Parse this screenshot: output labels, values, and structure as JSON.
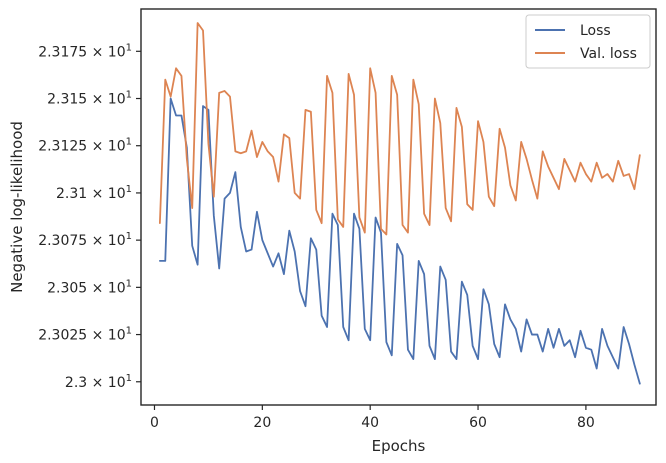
{
  "chart_data": {
    "type": "line",
    "title": "",
    "xlabel": "Epochs",
    "ylabel": "Negative log-likelihood",
    "xlim": [
      -2.5,
      93
    ],
    "ylim": [
      22.9877,
      23.1974
    ],
    "x_ticks": [
      {
        "value": 0,
        "label": "0"
      },
      {
        "value": 20,
        "label": "20"
      },
      {
        "value": 40,
        "label": "40"
      },
      {
        "value": 60,
        "label": "60"
      },
      {
        "value": 80,
        "label": "80"
      }
    ],
    "y_ticks": [
      {
        "value": 23.0,
        "mant": "2.3",
        "exp": "1"
      },
      {
        "value": 23.025,
        "mant": "2.3025",
        "exp": "1"
      },
      {
        "value": 23.05,
        "mant": "2.305",
        "exp": "1"
      },
      {
        "value": 23.075,
        "mant": "2.3075",
        "exp": "1"
      },
      {
        "value": 23.1,
        "mant": "2.31",
        "exp": "1"
      },
      {
        "value": 23.125,
        "mant": "2.3125",
        "exp": "1"
      },
      {
        "value": 23.15,
        "mant": "2.315",
        "exp": "1"
      },
      {
        "value": 23.175,
        "mant": "2.3175",
        "exp": "1"
      }
    ],
    "y_tick_times": "×",
    "y_tick_base": "10",
    "grid": false,
    "legend_position": "top-right",
    "x": [
      1,
      2,
      3,
      4,
      5,
      6,
      7,
      8,
      9,
      10,
      11,
      12,
      13,
      14,
      15,
      16,
      17,
      18,
      19,
      20,
      21,
      22,
      23,
      24,
      25,
      26,
      27,
      28,
      29,
      30,
      31,
      32,
      33,
      34,
      35,
      36,
      37,
      38,
      39,
      40,
      41,
      42,
      43,
      44,
      45,
      46,
      47,
      48,
      49,
      50,
      51,
      52,
      53,
      54,
      55,
      56,
      57,
      58,
      59,
      60,
      61,
      62,
      63,
      64,
      65,
      66,
      67,
      68,
      69,
      70,
      71,
      72,
      73,
      74,
      75,
      76,
      77,
      78,
      79,
      80,
      81,
      82,
      83,
      84,
      85,
      86,
      87,
      88,
      89,
      90
    ],
    "series": [
      {
        "name": "Loss",
        "color": "#4c72b0",
        "values": [
          23.064,
          23.064,
          23.15,
          23.141,
          23.141,
          23.124,
          23.072,
          23.062,
          23.146,
          23.144,
          23.088,
          23.06,
          23.097,
          23.1,
          23.111,
          23.082,
          23.069,
          23.07,
          23.09,
          23.075,
          23.068,
          23.061,
          23.068,
          23.057,
          23.08,
          23.069,
          23.048,
          23.04,
          23.076,
          23.07,
          23.035,
          23.029,
          23.089,
          23.083,
          23.029,
          23.022,
          23.089,
          23.081,
          23.028,
          23.022,
          23.087,
          23.079,
          23.021,
          23.014,
          23.073,
          23.067,
          23.017,
          23.012,
          23.064,
          23.057,
          23.019,
          23.012,
          23.061,
          23.054,
          23.016,
          23.012,
          23.053,
          23.046,
          23.019,
          23.012,
          23.049,
          23.041,
          23.02,
          23.013,
          23.041,
          23.033,
          23.028,
          23.016,
          23.033,
          23.025,
          23.025,
          23.016,
          23.028,
          23.018,
          23.028,
          23.019,
          23.022,
          23.013,
          23.027,
          23.018,
          23.017,
          23.007,
          23.028,
          23.019,
          23.013,
          23.007,
          23.029,
          23.02,
          23.009,
          22.999
        ]
      },
      {
        "name": "Val. loss",
        "color": "#dd8452",
        "values": [
          23.084,
          23.16,
          23.151,
          23.166,
          23.162,
          23.118,
          23.092,
          23.19,
          23.186,
          23.126,
          23.098,
          23.153,
          23.154,
          23.151,
          23.122,
          23.121,
          23.122,
          23.133,
          23.119,
          23.127,
          23.122,
          23.119,
          23.106,
          23.131,
          23.129,
          23.1,
          23.097,
          23.144,
          23.143,
          23.091,
          23.084,
          23.162,
          23.153,
          23.086,
          23.082,
          23.163,
          23.152,
          23.087,
          23.079,
          23.166,
          23.153,
          23.081,
          23.078,
          23.162,
          23.152,
          23.083,
          23.079,
          23.16,
          23.147,
          23.089,
          23.083,
          23.15,
          23.137,
          23.092,
          23.085,
          23.145,
          23.135,
          23.094,
          23.091,
          23.138,
          23.127,
          23.098,
          23.093,
          23.134,
          23.124,
          23.104,
          23.096,
          23.127,
          23.118,
          23.107,
          23.097,
          23.122,
          23.114,
          23.108,
          23.102,
          23.118,
          23.112,
          23.106,
          23.116,
          23.11,
          23.106,
          23.116,
          23.108,
          23.11,
          23.106,
          23.117,
          23.109,
          23.11,
          23.102,
          23.12
        ]
      }
    ]
  }
}
